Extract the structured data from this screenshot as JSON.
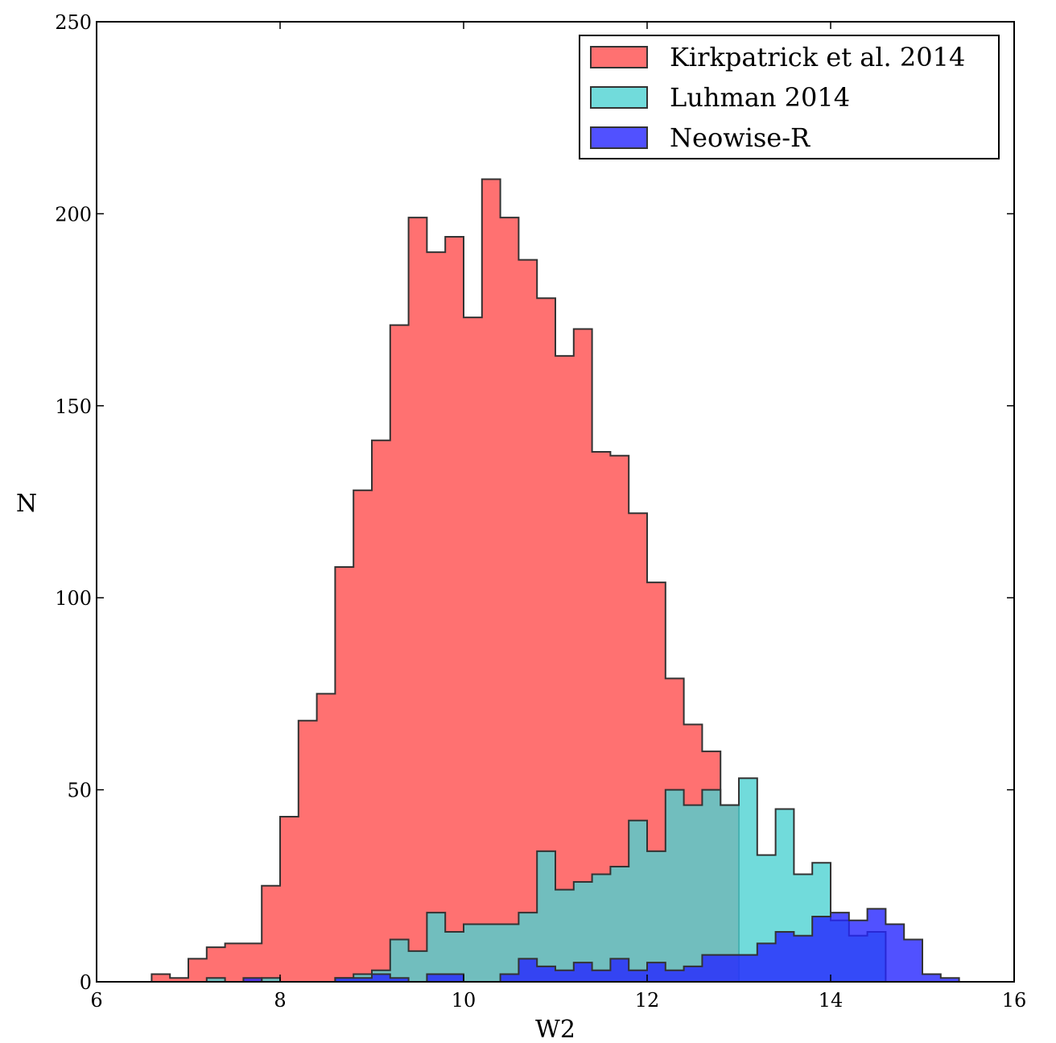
{
  "chart_data": {
    "type": "histogram",
    "xlabel": "W2",
    "ylabel": "N",
    "xlim": [
      6,
      16
    ],
    "ylim": [
      0,
      250
    ],
    "xticks": [
      6,
      8,
      10,
      12,
      14,
      16
    ],
    "yticks": [
      0,
      50,
      100,
      150,
      200,
      250
    ],
    "grid": false,
    "legend_position": "top-right",
    "bin_width": 0.2,
    "series": [
      {
        "name": "Kirkpatrick et al. 2014",
        "color": "#ff4d4d",
        "start": 6.6,
        "counts": [
          2,
          1,
          6,
          9,
          10,
          10,
          25,
          43,
          68,
          75,
          108,
          128,
          141,
          171,
          199,
          190,
          194,
          173,
          209,
          199,
          188,
          178,
          163,
          170,
          138,
          137,
          122,
          104,
          79,
          67,
          60,
          46
        ]
      },
      {
        "name": "Luhman 2014",
        "color": "#4dd2d2",
        "start": 7.2,
        "counts": [
          1,
          0,
          0,
          1,
          0,
          0,
          0,
          1,
          2,
          3,
          11,
          8,
          18,
          13,
          15,
          15,
          15,
          18,
          34,
          24,
          26,
          28,
          30,
          42,
          34,
          50,
          46,
          50,
          46,
          53,
          33,
          45,
          28,
          31,
          16,
          12,
          13
        ]
      },
      {
        "name": "Neowise-R",
        "color": "#2626ff",
        "start": 7.6,
        "counts": [
          1,
          0,
          0,
          0,
          0,
          1,
          1,
          2,
          1,
          0,
          2,
          2,
          0,
          0,
          2,
          6,
          4,
          3,
          5,
          3,
          6,
          3,
          5,
          3,
          4,
          7,
          7,
          7,
          10,
          13,
          12,
          17,
          18,
          16,
          19,
          15,
          11,
          2,
          1
        ]
      }
    ]
  }
}
